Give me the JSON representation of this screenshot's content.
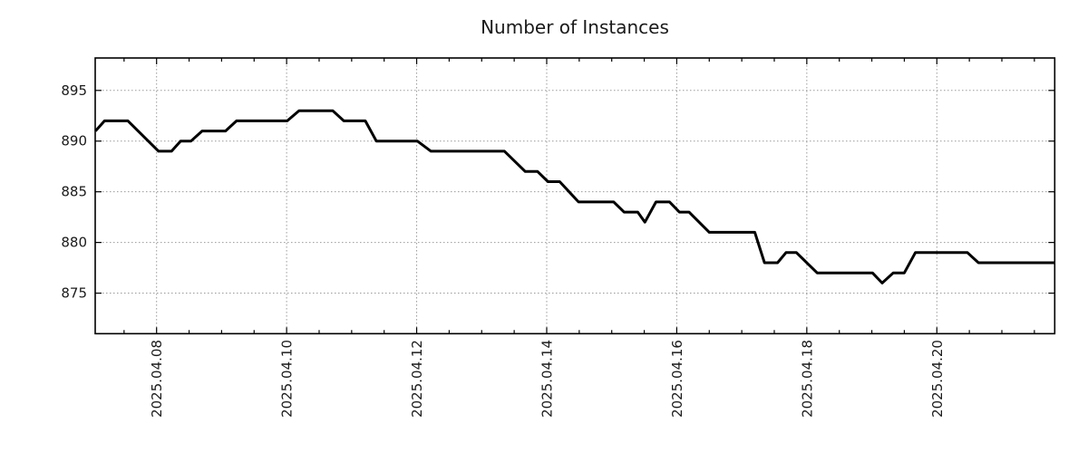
{
  "page": {
    "background": "#ffffff"
  },
  "chart_data": {
    "type": "line",
    "title": "Number of Instances",
    "legend": "none",
    "grid": "dotted gridlines at major x and y ticks",
    "colors": {
      "line": "#000000",
      "grid": "#9a9a9a",
      "axis": "#000000",
      "text": "#1a1a1a"
    },
    "x_axis": {
      "label": "",
      "encoding": "days relative to 2025-04-07",
      "range_days": [
        0.056,
        14.813
      ],
      "major_ticks": [
        {
          "day": 1,
          "label": "2025.04.08"
        },
        {
          "day": 3,
          "label": "2025.04.10"
        },
        {
          "day": 5,
          "label": "2025.04.12"
        },
        {
          "day": 7,
          "label": "2025.04.14"
        },
        {
          "day": 9,
          "label": "2025.04.16"
        },
        {
          "day": 11,
          "label": "2025.04.18"
        },
        {
          "day": 13,
          "label": "2025.04.20"
        }
      ],
      "minor_tick_step_days": 0.5,
      "tick_label_rotation_deg": -90
    },
    "y_axis": {
      "label": "",
      "range": [
        871.0,
        898.2
      ],
      "ticks": [
        875,
        880,
        885,
        890,
        895
      ]
    },
    "series": [
      {
        "name": "Number of Instances",
        "color": "#000000",
        "points": [
          [
            0.06,
            891
          ],
          [
            0.2,
            892
          ],
          [
            0.56,
            892
          ],
          [
            1.03,
            889
          ],
          [
            1.23,
            889
          ],
          [
            1.37,
            890
          ],
          [
            1.53,
            890
          ],
          [
            1.7,
            891
          ],
          [
            2.06,
            891
          ],
          [
            2.23,
            892
          ],
          [
            3.01,
            892
          ],
          [
            3.19,
            893
          ],
          [
            3.71,
            893
          ],
          [
            3.88,
            892
          ],
          [
            4.21,
            892
          ],
          [
            4.38,
            890
          ],
          [
            5.01,
            890
          ],
          [
            5.22,
            889
          ],
          [
            6.35,
            889
          ],
          [
            6.67,
            887
          ],
          [
            6.86,
            887
          ],
          [
            7.02,
            886
          ],
          [
            7.2,
            886
          ],
          [
            7.49,
            884
          ],
          [
            8.03,
            884
          ],
          [
            8.19,
            883
          ],
          [
            8.4,
            883
          ],
          [
            8.51,
            882
          ],
          [
            8.68,
            884
          ],
          [
            8.89,
            884
          ],
          [
            9.04,
            883
          ],
          [
            9.19,
            883
          ],
          [
            9.5,
            881
          ],
          [
            10.2,
            881
          ],
          [
            10.35,
            878
          ],
          [
            10.55,
            878
          ],
          [
            10.68,
            879
          ],
          [
            10.84,
            879
          ],
          [
            11.16,
            877
          ],
          [
            12.01,
            877
          ],
          [
            12.16,
            876
          ],
          [
            12.33,
            877
          ],
          [
            12.5,
            877
          ],
          [
            12.67,
            879
          ],
          [
            13.47,
            879
          ],
          [
            13.64,
            878
          ],
          [
            14.81,
            878
          ]
        ]
      }
    ]
  }
}
